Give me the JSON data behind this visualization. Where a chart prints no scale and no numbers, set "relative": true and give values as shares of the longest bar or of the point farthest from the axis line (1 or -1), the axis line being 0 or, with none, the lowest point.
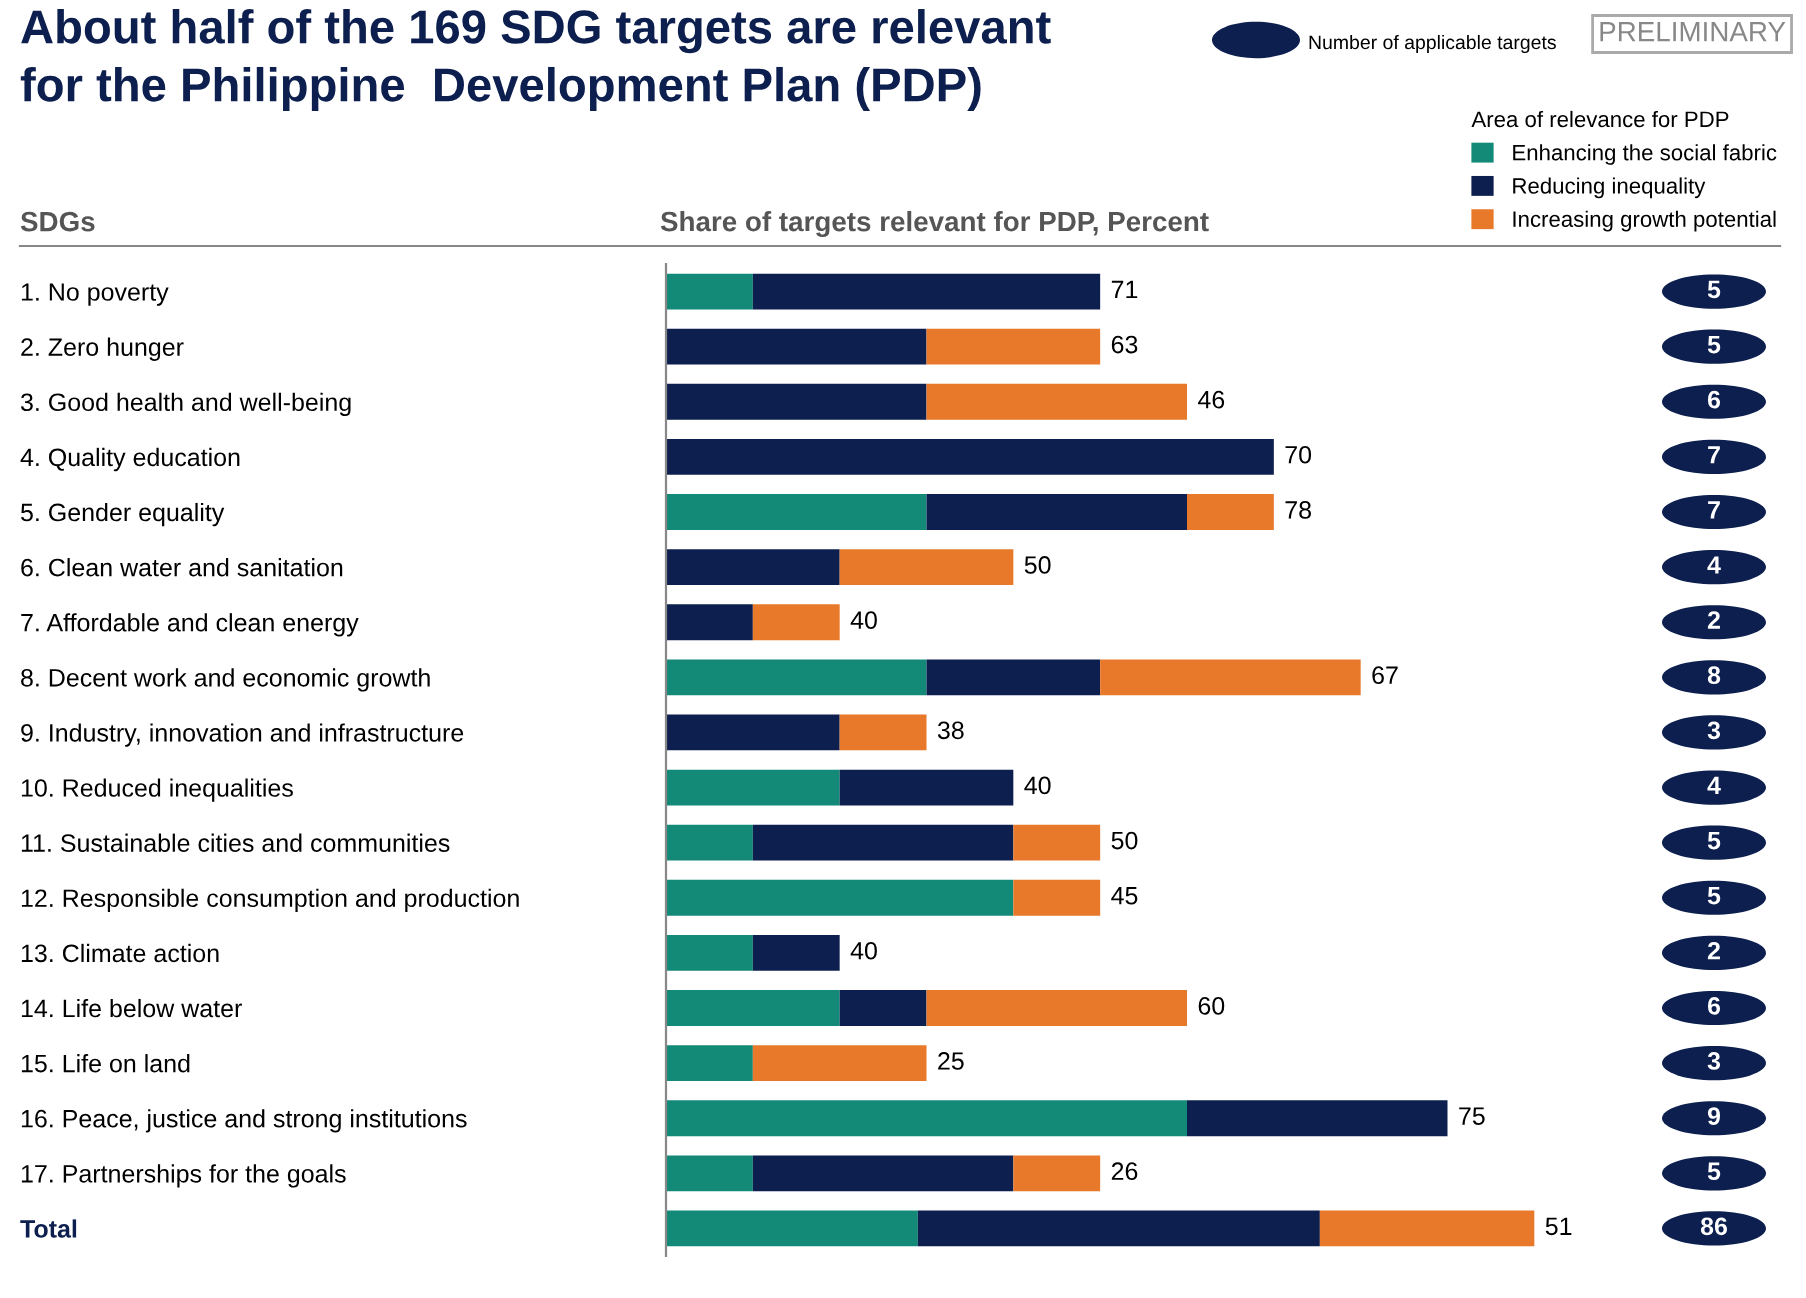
{
  "chart_data": {
    "type": "bar",
    "orientation": "horizontal",
    "stacked": true,
    "relative": true,
    "title": "About half of the 169 SDG targets are relevant\nfor the Philippine  Development Plan (PDP)",
    "ylabel": "SDGs",
    "xlabel": "Share of targets relevant for PDP, Percent",
    "legend_title": "Area of relevance for PDP",
    "legend": "top right",
    "categories": [
      "1. No poverty",
      "2. Zero hunger",
      "3. Good health and well-being",
      "4. Quality education",
      "5. Gender equality",
      "6. Clean water and sanitation",
      "7. Affordable and clean energy",
      "8. Decent work and economic growth",
      "9. Industry, innovation and infrastructure",
      "10. Reduced inequalities",
      "11. Sustainable cities and communities",
      "12. Responsible consumption and production",
      "13. Climate action",
      "14. Life below water",
      "15. Life on land",
      "16. Peace, justice and strong institutions",
      "17. Partnerships for the goals",
      "Total"
    ],
    "series": [
      {
        "name": "Enhancing the social fabric",
        "color": "#138a78",
        "values": [
          0.1,
          0,
          0,
          0,
          0.3,
          0,
          0,
          0.3,
          0,
          0.2,
          0.1,
          0.4,
          0.1,
          0.2,
          0.1,
          0.6,
          0.1,
          0.29
        ]
      },
      {
        "name": "Reducing inequality",
        "color": "#0c1f4e",
        "values": [
          0.4,
          0.3,
          0.3,
          0.7,
          0.3,
          0.2,
          0.1,
          0.2,
          0.2,
          0.2,
          0.3,
          0,
          0.1,
          0.1,
          0,
          0.3,
          0.3,
          0.463
        ]
      },
      {
        "name": "Increasing growth potential",
        "color": "#e8782a",
        "values": [
          0,
          0.2,
          0.3,
          0,
          0.1,
          0.2,
          0.1,
          0.3,
          0.1,
          0,
          0.1,
          0.1,
          0,
          0.3,
          0.2,
          0,
          0.1,
          0.247
        ]
      }
    ],
    "annotations": [
      "Number of applicable targets",
      "PRELIMINARY",
      "71",
      "63",
      "46",
      "70",
      "78",
      "50",
      "40",
      "67",
      "38",
      "40",
      "50",
      "45",
      "40",
      "60",
      "25",
      "75",
      "26",
      "51",
      "5",
      "5",
      "6",
      "7",
      "7",
      "4",
      "2",
      "8",
      "3",
      "4",
      "5",
      "5",
      "2",
      "6",
      "3",
      "9",
      "5",
      "86"
    ]
  }
}
